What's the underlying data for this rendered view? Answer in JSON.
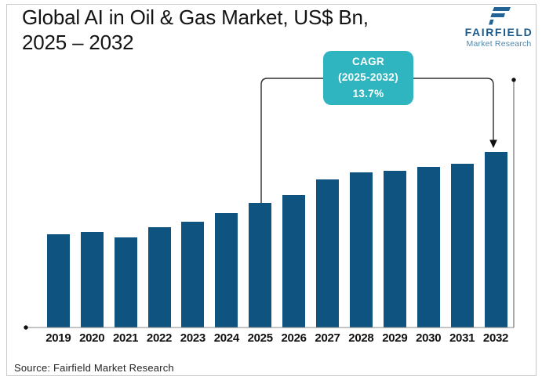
{
  "header": {
    "title_line1": "Global AI in Oil & Gas Market, US$ Bn,",
    "title_line2": "2025 – 2032"
  },
  "logo": {
    "name": "FAIRFIELD",
    "subtitle": "Market Research"
  },
  "annotation": {
    "line1": "CAGR",
    "line2": "(2025-2032)",
    "line3": "13.7%"
  },
  "footer": {
    "source": "Source: Fairfield Market Research"
  },
  "colors": {
    "bar": "#0f5480",
    "cagr_box": "#2eb5c0",
    "logo_dark": "#1d5b8c",
    "logo_light": "#4f87ad",
    "card_border": "#c9c9c9",
    "axis": "#8a8a8a"
  },
  "chart_data": {
    "type": "bar",
    "title": "Global AI in Oil & Gas Market, US$ Bn, 2025 – 2032",
    "categories": [
      "2019",
      "2020",
      "2021",
      "2022",
      "2023",
      "2024",
      "2025",
      "2026",
      "2027",
      "2028",
      "2029",
      "2030",
      "2031",
      "2032"
    ],
    "values": [
      119,
      122,
      115,
      128,
      135,
      146,
      159,
      169,
      189,
      198,
      200,
      205,
      209,
      224
    ],
    "values_note": "relative bar heights (no numeric value axis shown in chart)",
    "xlabel": "",
    "ylabel": "",
    "grid": false,
    "legend": false,
    "annotations": [
      "CAGR (2025-2032) 13.7%"
    ]
  }
}
